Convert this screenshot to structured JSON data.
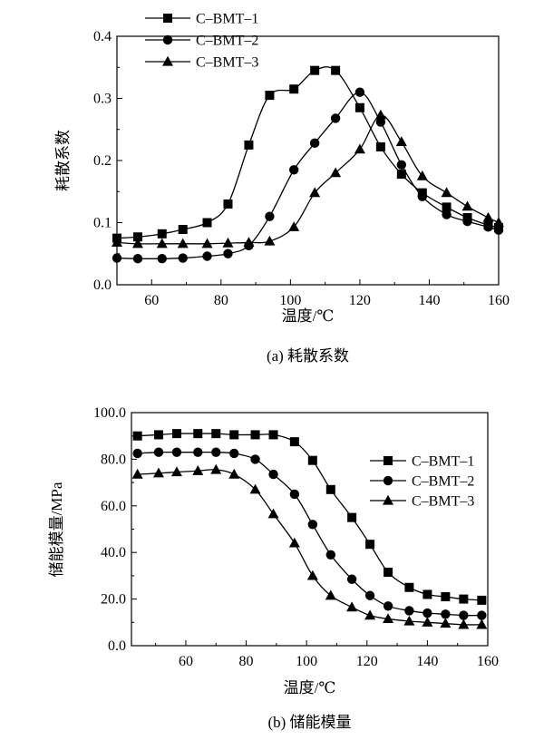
{
  "chart_data": [
    {
      "type": "line",
      "caption": "(a) 耗散系数",
      "xlabel": "温度/℃",
      "ylabel": "耗散系数",
      "xlim": [
        50,
        160
      ],
      "ylim": [
        0.0,
        0.4
      ],
      "xticks": [
        "60",
        "80",
        "100",
        "120",
        "140",
        "160"
      ],
      "yticks": [
        "0.0",
        "0.1",
        "0.2",
        "0.3",
        "0.4"
      ],
      "legend_position": "top-left",
      "grid": false,
      "series": [
        {
          "name": "C–BMT–1",
          "marker": "square",
          "x": [
            50,
            56,
            63,
            69,
            76,
            82,
            88,
            94,
            101,
            107,
            113,
            120,
            126,
            132,
            138,
            145,
            151,
            157,
            160
          ],
          "y": [
            0.075,
            0.077,
            0.082,
            0.089,
            0.1,
            0.13,
            0.225,
            0.305,
            0.315,
            0.345,
            0.345,
            0.285,
            0.222,
            0.178,
            0.148,
            0.125,
            0.108,
            0.096,
            0.092
          ]
        },
        {
          "name": "C–BMT–2",
          "marker": "circle",
          "x": [
            50,
            56,
            63,
            69,
            76,
            82,
            88,
            94,
            101,
            107,
            113,
            120,
            126,
            132,
            138,
            145,
            151,
            157,
            160
          ],
          "y": [
            0.043,
            0.042,
            0.042,
            0.043,
            0.046,
            0.05,
            0.063,
            0.11,
            0.185,
            0.228,
            0.268,
            0.31,
            0.262,
            0.193,
            0.142,
            0.113,
            0.102,
            0.093,
            0.088
          ]
        },
        {
          "name": "C–BMT–3",
          "marker": "triangle",
          "x": [
            50,
            56,
            63,
            69,
            76,
            82,
            88,
            94,
            101,
            107,
            113,
            120,
            126,
            132,
            138,
            145,
            151,
            157,
            160
          ],
          "y": [
            0.068,
            0.066,
            0.066,
            0.066,
            0.066,
            0.067,
            0.068,
            0.07,
            0.093,
            0.148,
            0.18,
            0.218,
            0.273,
            0.23,
            0.175,
            0.148,
            0.126,
            0.108,
            0.1
          ]
        }
      ]
    },
    {
      "type": "line",
      "caption": "(b) 储能模量",
      "xlabel": "温度/℃",
      "ylabel": "储能模量/MPa",
      "xlim": [
        42,
        160
      ],
      "ylim": [
        0.0,
        100.0
      ],
      "xticks": [
        "60",
        "80",
        "100",
        "120",
        "140",
        "160"
      ],
      "yticks": [
        "0.0",
        "20.0",
        "40.0",
        "60.0",
        "80.0",
        "100.0"
      ],
      "legend_position": "right",
      "grid": false,
      "series": [
        {
          "name": "C–BMT–1",
          "marker": "square",
          "x": [
            44,
            51,
            57,
            64,
            70,
            76,
            83,
            89,
            96,
            102,
            108,
            115,
            121,
            127,
            134,
            140,
            146,
            152,
            158
          ],
          "y": [
            90.0,
            90.5,
            91.0,
            91.0,
            91.0,
            90.5,
            90.5,
            90.5,
            87.5,
            79.5,
            67.0,
            55.0,
            43.5,
            31.5,
            25.0,
            22.0,
            21.0,
            20.0,
            19.5
          ]
        },
        {
          "name": "C–BMT–2",
          "marker": "circle",
          "x": [
            44,
            51,
            57,
            64,
            70,
            76,
            83,
            89,
            96,
            102,
            108,
            115,
            121,
            127,
            134,
            140,
            146,
            152,
            158
          ],
          "y": [
            82.5,
            83.0,
            83.0,
            83.0,
            83.0,
            82.5,
            80.0,
            73.5,
            65.0,
            52.0,
            39.0,
            28.5,
            21.5,
            17.0,
            15.0,
            14.0,
            13.5,
            13.0,
            13.0
          ]
        },
        {
          "name": "C–BMT–3",
          "marker": "triangle",
          "x": [
            44,
            51,
            57,
            64,
            70,
            76,
            83,
            89,
            96,
            102,
            108,
            115,
            121,
            127,
            134,
            140,
            146,
            152,
            158
          ],
          "y": [
            73.5,
            74.0,
            74.5,
            75.0,
            75.5,
            73.5,
            67.0,
            56.5,
            44.0,
            30.0,
            21.5,
            16.5,
            13.0,
            11.5,
            10.5,
            10.0,
            9.5,
            9.0,
            9.0
          ]
        }
      ]
    }
  ]
}
